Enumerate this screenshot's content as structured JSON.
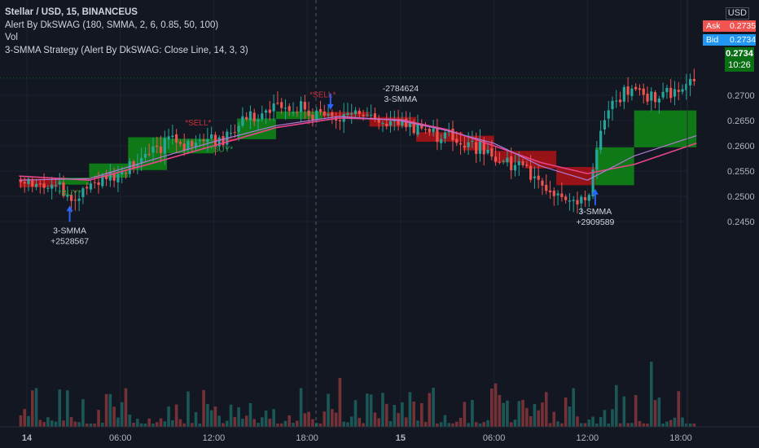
{
  "header": {
    "symbol_line": "Stellar / USD, 15, BINANCEUS",
    "indicator_1": "Alert By DkSWAG (180, SMMA, 2, 6, 0.85, 50, 100)",
    "indicator_2": "Vol",
    "indicator_3": "3-SMMA Strategy (Alert By DkSWAG: Close Line, 14, 3, 3)"
  },
  "price_scale": {
    "currency": "USD",
    "ask_label": "Ask",
    "ask_value": "0.2735",
    "bid_label": "Bid",
    "bid_value": "0.2734",
    "last_price": "0.2734",
    "countdown": "10:26",
    "ticks": [
      "0.2700",
      "0.2650",
      "0.2600",
      "0.2550",
      "0.2500",
      "0.2450"
    ]
  },
  "time_axis": {
    "ticks": [
      "14",
      "06:00",
      "12:00",
      "18:00",
      "15",
      "06:00",
      "12:00",
      "18:00"
    ]
  },
  "signals": {
    "buy_label": "BUY",
    "sell_label": "SELL",
    "trade_labels": [
      {
        "line1": "3-SMMA",
        "line2": "+2528567"
      },
      {
        "line1": "-2784624",
        "line2": "3-SMMA"
      },
      {
        "line1": "3-SMMA",
        "line2": "+2909589"
      }
    ]
  },
  "colors": {
    "background": "#131722",
    "up_candle": "#26a69a",
    "down_candle": "#ef5350",
    "cloud_bull": "#0f7d17",
    "cloud_bear": "#9e1317",
    "trend_line": "#b07ad6",
    "slow_line": "#e8458b",
    "buy_text": "#2e9e3a",
    "sell_text": "#c8303a",
    "arrow": "#2962ff",
    "ask": "#f05350",
    "bid": "#2196f3",
    "last_box": "#0a6e14"
  },
  "chart_data": {
    "type": "candlestick",
    "title": "Stellar / USD, 15, BINANCEUS",
    "y_range": [
      0.2435,
      0.2775
    ],
    "x_range": [
      "14 00:00",
      "15 19:00"
    ],
    "grid": true,
    "last_price": 0.2734,
    "price_path": [
      {
        "t": "13 23:30",
        "p": 0.253
      },
      {
        "t": "14 02:00",
        "p": 0.252
      },
      {
        "t": "14 03:00",
        "p": 0.2488
      },
      {
        "t": "14 04:00",
        "p": 0.252
      },
      {
        "t": "14 06:00",
        "p": 0.2548
      },
      {
        "t": "14 08:00",
        "p": 0.2585
      },
      {
        "t": "14 09:00",
        "p": 0.2612
      },
      {
        "t": "14 11:00",
        "p": 0.26
      },
      {
        "t": "14 12:30",
        "p": 0.261
      },
      {
        "t": "14 14:00",
        "p": 0.265
      },
      {
        "t": "14 16:00",
        "p": 0.268
      },
      {
        "t": "14 18:00",
        "p": 0.2668
      },
      {
        "t": "14 20:00",
        "p": 0.2656
      },
      {
        "t": "14 22:00",
        "p": 0.266
      },
      {
        "t": "15 01:00",
        "p": 0.264
      },
      {
        "t": "15 03:00",
        "p": 0.2615
      },
      {
        "t": "15 05:00",
        "p": 0.2595
      },
      {
        "t": "15 07:00",
        "p": 0.257
      },
      {
        "t": "15 09:00",
        "p": 0.253
      },
      {
        "t": "15 10:00",
        "p": 0.2495
      },
      {
        "t": "15 11:00",
        "p": 0.2482
      },
      {
        "t": "15 12:00",
        "p": 0.25
      },
      {
        "t": "15 13:00",
        "p": 0.266
      },
      {
        "t": "15 14:00",
        "p": 0.27
      },
      {
        "t": "15 15:00",
        "p": 0.271
      },
      {
        "t": "15 17:00",
        "p": 0.2695
      },
      {
        "t": "15 19:00",
        "p": 0.2734
      }
    ],
    "cloud_segments": [
      {
        "from": "13 23:30",
        "to": "14 02:00",
        "top": 0.2535,
        "bottom": 0.2518,
        "trend": "bear"
      },
      {
        "from": "14 02:00",
        "to": "14 04:00",
        "top": 0.2537,
        "bottom": 0.2523,
        "trend": "bull"
      },
      {
        "from": "14 04:00",
        "to": "14 06:30",
        "top": 0.2565,
        "bottom": 0.2537,
        "trend": "bull"
      },
      {
        "from": "14 06:30",
        "to": "14 09:00",
        "top": 0.2617,
        "bottom": 0.2552,
        "trend": "bull"
      },
      {
        "from": "14 09:00",
        "to": "14 12:00",
        "top": 0.2614,
        "bottom": 0.2585,
        "trend": "bull"
      },
      {
        "from": "14 12:00",
        "to": "14 13:30",
        "top": 0.2614,
        "bottom": 0.261,
        "trend": "bear"
      },
      {
        "from": "14 13:30",
        "to": "14 16:00",
        "top": 0.2654,
        "bottom": 0.2613,
        "trend": "bull"
      },
      {
        "from": "14 16:00",
        "to": "14 19:00",
        "top": 0.2668,
        "bottom": 0.2653,
        "trend": "bull"
      },
      {
        "from": "14 19:00",
        "to": "14 22:00",
        "top": 0.2667,
        "bottom": 0.2657,
        "trend": "bear"
      },
      {
        "from": "14 22:00",
        "to": "15 01:00",
        "top": 0.2657,
        "bottom": 0.2638,
        "trend": "bear"
      },
      {
        "from": "15 01:00",
        "to": "15 04:00",
        "top": 0.2627,
        "bottom": 0.2608,
        "trend": "bear"
      },
      {
        "from": "15 04:00",
        "to": "15 06:00",
        "top": 0.262,
        "bottom": 0.2591,
        "trend": "bear"
      },
      {
        "from": "15 06:00",
        "to": "15 08:00",
        "top": 0.259,
        "bottom": 0.2567,
        "trend": "bear"
      },
      {
        "from": "15 08:00",
        "to": "15 10:00",
        "top": 0.259,
        "bottom": 0.2555,
        "trend": "bear"
      },
      {
        "from": "15 10:00",
        "to": "15 12:30",
        "top": 0.2558,
        "bottom": 0.2522,
        "trend": "bear"
      },
      {
        "from": "15 12:30",
        "to": "15 15:00",
        "top": 0.2597,
        "bottom": 0.2522,
        "trend": "bull"
      },
      {
        "from": "15 15:00",
        "to": "15 19:00",
        "top": 0.267,
        "bottom": 0.2597,
        "trend": "bull"
      }
    ],
    "trend_line": [
      {
        "t": "13 23:30",
        "p": 0.2532
      },
      {
        "t": "14 04:00",
        "p": 0.2535
      },
      {
        "t": "14 08:00",
        "p": 0.2572
      },
      {
        "t": "14 12:00",
        "p": 0.2608
      },
      {
        "t": "14 16:00",
        "p": 0.264
      },
      {
        "t": "14 20:00",
        "p": 0.2658
      },
      {
        "t": "15 00:00",
        "p": 0.265
      },
      {
        "t": "15 03:00",
        "p": 0.263
      },
      {
        "t": "15 06:00",
        "p": 0.2605
      },
      {
        "t": "15 09:00",
        "p": 0.256
      },
      {
        "t": "15 12:00",
        "p": 0.2532
      },
      {
        "t": "15 15:00",
        "p": 0.258
      },
      {
        "t": "15 19:00",
        "p": 0.262
      }
    ],
    "slow_line": [
      {
        "t": "13 23:30",
        "p": 0.254
      },
      {
        "t": "14 04:00",
        "p": 0.2532
      },
      {
        "t": "14 08:00",
        "p": 0.2565
      },
      {
        "t": "14 12:00",
        "p": 0.26
      },
      {
        "t": "14 16:00",
        "p": 0.2636
      },
      {
        "t": "14 20:00",
        "p": 0.2655
      },
      {
        "t": "15 00:00",
        "p": 0.2652
      },
      {
        "t": "15 03:00",
        "p": 0.2632
      },
      {
        "t": "15 06:00",
        "p": 0.26
      },
      {
        "t": "15 09:00",
        "p": 0.2567
      },
      {
        "t": "15 12:00",
        "p": 0.2545
      },
      {
        "t": "15 15:00",
        "p": 0.2563
      },
      {
        "t": "15 19:00",
        "p": 0.2605
      }
    ],
    "signals": [
      {
        "type": "buy",
        "t": "14 02:45",
        "p": 0.2502
      },
      {
        "type": "sell",
        "t": "14 11:00",
        "p": 0.264
      },
      {
        "type": "buy",
        "t": "14 12:30",
        "p": 0.2588
      },
      {
        "type": "sell",
        "t": "14 19:00",
        "p": 0.2696
      },
      {
        "type": "buy_arrow",
        "t": "14 02:45",
        "p": 0.2485
      },
      {
        "type": "sell_arrow",
        "t": "14 19:30",
        "p": 0.2668
      },
      {
        "type": "buy_arrow",
        "t": "15 12:30",
        "p": 0.2518
      }
    ]
  }
}
